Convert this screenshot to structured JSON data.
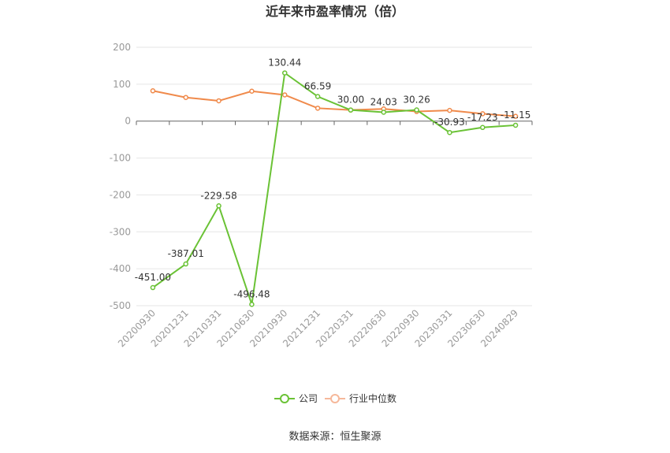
{
  "chart_data": {
    "type": "line",
    "title": "近年来市盈率情况（倍）",
    "categories": [
      "20200930",
      "20201231",
      "20210331",
      "20210630",
      "20210930",
      "20211231",
      "20220331",
      "20220630",
      "20220930",
      "20230331",
      "20230630",
      "20240829"
    ],
    "ylim": [
      -500,
      200
    ],
    "yticks": [
      200,
      100,
      0,
      -100,
      -200,
      -300,
      -400,
      -500
    ],
    "grid": true,
    "legend_position": "bottom",
    "series": [
      {
        "name": "公司",
        "color": "#6ac235",
        "values": [
          -451.0,
          -387.01,
          -229.58,
          -496.48,
          130.44,
          66.59,
          30.0,
          24.03,
          30.26,
          -30.93,
          -17.23,
          -11.15
        ],
        "labels": [
          "-451.00",
          "-387.01",
          "-229.58",
          "-496.48",
          "130.44",
          "66.59",
          "30.00",
          "24.03",
          "30.26",
          "-30.93",
          "-17.23",
          "-11.15"
        ]
      },
      {
        "name": "行业中位数",
        "color": "#f08a4b",
        "values": [
          82,
          64,
          55,
          81,
          71,
          35,
          30,
          33,
          26,
          29,
          20,
          13
        ]
      }
    ],
    "source": "数据来源：恒生聚源"
  }
}
